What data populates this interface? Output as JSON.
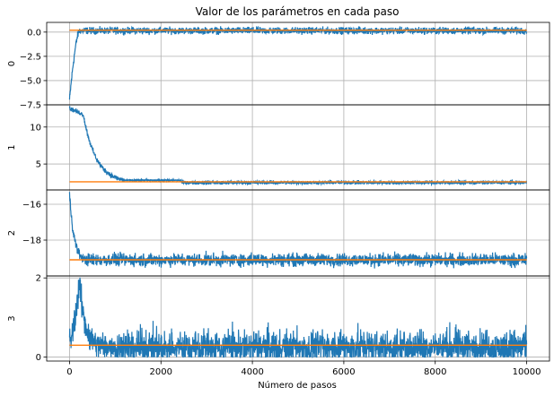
{
  "chart_data": {
    "type": "line",
    "title": "Valor de los parámetros en cada paso",
    "xlabel": "Número de pasos",
    "x_range": [
      0,
      10000
    ],
    "xlim": [
      -500,
      10500
    ],
    "x_ticks": [
      0,
      2000,
      4000,
      6000,
      8000,
      10000
    ],
    "grid": true,
    "colors": {
      "trace": "#1f77b4",
      "target": "#ff7f0e"
    },
    "panels": [
      {
        "ylabel": "0",
        "ylim": [
          -7.5,
          1.0
        ],
        "y_ticks": [
          0.0,
          -2.5,
          -5.0,
          -7.5
        ],
        "y_tick_labels": [
          "0.0",
          "−2.5",
          "−5.0",
          "−7.5"
        ],
        "trace": {
          "start": -7.0,
          "converge_step": 220,
          "final": 0.15,
          "noise": 0.35
        },
        "target": {
          "value": 0.2,
          "start_step": 0
        }
      },
      {
        "ylabel": "1",
        "ylim": [
          1.5,
          13.0
        ],
        "y_ticks": [
          10,
          5
        ],
        "y_tick_labels": [
          "10",
          "5"
        ],
        "trace": {
          "start": 12.5,
          "plateau": 11.7,
          "plateau_until": 300,
          "converge_step": 1200,
          "mid": 2.8,
          "mid_until": 2450,
          "final": 2.5,
          "noise": 0.25
        },
        "target": {
          "value": 2.6,
          "start_step": 0
        }
      },
      {
        "ylabel": "2",
        "ylim": [
          -20.0,
          -15.2
        ],
        "y_ticks": [
          -16,
          -18
        ],
        "y_tick_labels": [
          "−16",
          "−18"
        ],
        "trace": {
          "start": -15.4,
          "converge_step": 350,
          "final": -19.1,
          "noise": 0.35
        },
        "target": {
          "value": -19.1,
          "start_step": 0
        }
      },
      {
        "ylabel": "3",
        "ylim": [
          -0.1,
          2.05
        ],
        "y_ticks": [
          0,
          2
        ],
        "y_tick_labels": [
          "0",
          "2"
        ],
        "trace": {
          "start": 0.4,
          "peak": 1.9,
          "peak_step": 220,
          "final": 0.25,
          "noise": 0.4
        },
        "target": {
          "value": 0.3,
          "start_step": 0
        }
      }
    ],
    "overlap_labels": [
      "−7.5",
      "2"
    ]
  }
}
